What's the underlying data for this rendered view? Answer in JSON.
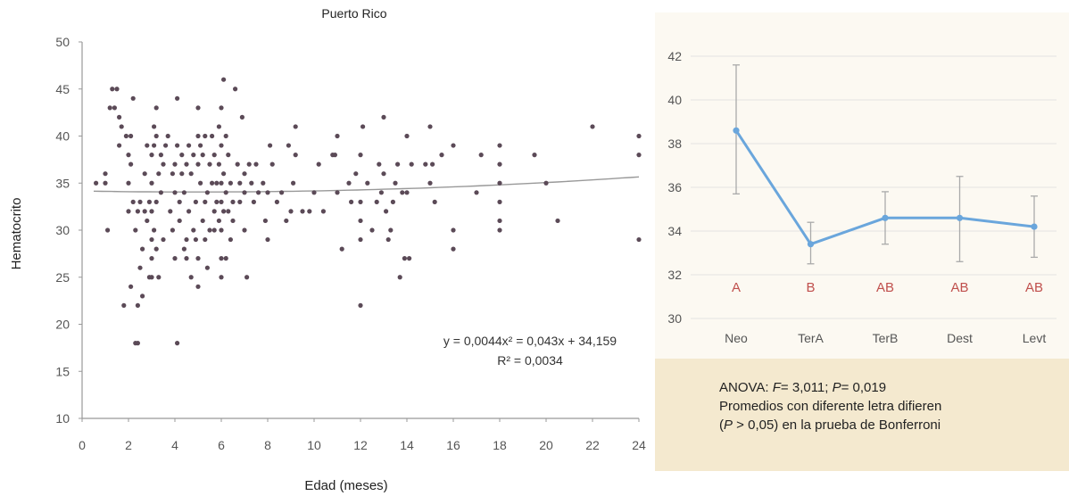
{
  "chart_data": [
    {
      "type": "scatter",
      "title": "Puerto Rico",
      "xlabel": "Edad (meses)",
      "ylabel": "Hematocrito",
      "xlim": [
        0,
        24
      ],
      "ylim": [
        10,
        50
      ],
      "xticks": [
        "0",
        "2",
        "4",
        "6",
        "8",
        "10",
        "12",
        "14",
        "16",
        "18",
        "20",
        "22",
        "24"
      ],
      "yticks": [
        "10",
        "15",
        "20",
        "25",
        "30",
        "35",
        "40",
        "45",
        "50"
      ],
      "colors": {
        "points": "#5b4a57",
        "trend": "#999999"
      },
      "trendline": {
        "a": 0.0044,
        "b": 0.043,
        "c": 34.159
      },
      "equation": "y = 0,0044x² = 0,043x + 34,159",
      "r2": "R² = 0,0034",
      "points": [
        [
          0.6,
          35
        ],
        [
          1,
          35
        ],
        [
          1,
          36
        ],
        [
          1.1,
          30
        ],
        [
          1.2,
          43
        ],
        [
          1.3,
          45
        ],
        [
          1.4,
          43
        ],
        [
          1.5,
          45
        ],
        [
          1.6,
          39
        ],
        [
          1.6,
          42
        ],
        [
          1.7,
          41
        ],
        [
          1.8,
          22
        ],
        [
          1.9,
          40
        ],
        [
          2,
          35
        ],
        [
          2,
          38
        ],
        [
          2,
          32
        ],
        [
          2.1,
          24
        ],
        [
          2.1,
          37
        ],
        [
          2.1,
          40
        ],
        [
          2.2,
          44
        ],
        [
          2.2,
          33
        ],
        [
          2.3,
          18
        ],
        [
          2.3,
          30
        ],
        [
          2.4,
          18
        ],
        [
          2.4,
          22
        ],
        [
          2.4,
          32
        ],
        [
          2.5,
          26
        ],
        [
          2.5,
          33
        ],
        [
          2.6,
          28
        ],
        [
          2.6,
          23
        ],
        [
          2.7,
          32
        ],
        [
          2.7,
          36
        ],
        [
          2.8,
          31
        ],
        [
          2.8,
          39
        ],
        [
          2.9,
          25
        ],
        [
          2.9,
          33
        ],
        [
          3,
          27
        ],
        [
          3,
          25
        ],
        [
          3,
          29
        ],
        [
          3,
          32
        ],
        [
          3,
          35
        ],
        [
          3,
          38
        ],
        [
          3.1,
          30
        ],
        [
          3.1,
          39
        ],
        [
          3.1,
          41
        ],
        [
          3.2,
          43
        ],
        [
          3.2,
          40
        ],
        [
          3.2,
          28
        ],
        [
          3.2,
          33
        ],
        [
          3.3,
          25
        ],
        [
          3.3,
          36
        ],
        [
          3.4,
          38
        ],
        [
          3.4,
          34
        ],
        [
          3.5,
          29
        ],
        [
          3.5,
          37
        ],
        [
          3.6,
          39
        ],
        [
          3.7,
          40
        ],
        [
          3.8,
          32
        ],
        [
          3.9,
          36
        ],
        [
          3.9,
          30
        ],
        [
          4,
          34
        ],
        [
          4,
          37
        ],
        [
          4,
          27
        ],
        [
          4.1,
          39
        ],
        [
          4.1,
          18
        ],
        [
          4.1,
          44
        ],
        [
          4.2,
          33
        ],
        [
          4.2,
          31
        ],
        [
          4.3,
          36
        ],
        [
          4.3,
          38
        ],
        [
          4.4,
          34
        ],
        [
          4.4,
          28
        ],
        [
          4.5,
          29
        ],
        [
          4.5,
          27
        ],
        [
          4.5,
          37
        ],
        [
          4.6,
          39
        ],
        [
          4.6,
          32
        ],
        [
          4.7,
          25
        ],
        [
          4.7,
          36
        ],
        [
          4.8,
          30
        ],
        [
          4.8,
          38
        ],
        [
          4.9,
          29
        ],
        [
          4.9,
          33
        ],
        [
          5,
          24
        ],
        [
          5,
          27
        ],
        [
          5,
          37
        ],
        [
          5,
          40
        ],
        [
          5,
          43
        ],
        [
          5.1,
          35
        ],
        [
          5.1,
          39
        ],
        [
          5.2,
          31
        ],
        [
          5.2,
          38
        ],
        [
          5.3,
          33
        ],
        [
          5.3,
          29
        ],
        [
          5.3,
          40
        ],
        [
          5.4,
          26
        ],
        [
          5.4,
          34
        ],
        [
          5.5,
          30
        ],
        [
          5.5,
          37
        ],
        [
          5.6,
          35
        ],
        [
          5.6,
          40
        ],
        [
          5.7,
          32
        ],
        [
          5.7,
          38
        ],
        [
          5.7,
          30
        ],
        [
          5.8,
          33
        ],
        [
          5.8,
          35
        ],
        [
          5.9,
          31
        ],
        [
          5.9,
          37
        ],
        [
          5.9,
          41
        ],
        [
          6,
          25
        ],
        [
          6,
          27
        ],
        [
          6,
          30
        ],
        [
          6,
          33
        ],
        [
          6,
          35
        ],
        [
          6,
          39
        ],
        [
          6,
          43
        ],
        [
          6.1,
          46
        ],
        [
          6.1,
          32
        ],
        [
          6.1,
          36
        ],
        [
          6.2,
          27
        ],
        [
          6.2,
          34
        ],
        [
          6.2,
          40
        ],
        [
          6.3,
          32
        ],
        [
          6.3,
          38
        ],
        [
          6.4,
          29
        ],
        [
          6.4,
          35
        ],
        [
          6.5,
          31
        ],
        [
          6.5,
          33
        ],
        [
          6.6,
          45
        ],
        [
          6.7,
          37
        ],
        [
          6.8,
          33
        ],
        [
          6.8,
          35
        ],
        [
          6.9,
          42
        ],
        [
          7,
          36
        ],
        [
          7,
          34
        ],
        [
          7,
          30
        ],
        [
          7.1,
          25
        ],
        [
          7.2,
          37
        ],
        [
          7.3,
          35
        ],
        [
          7.4,
          33
        ],
        [
          7.5,
          37
        ],
        [
          7.6,
          34
        ],
        [
          7.8,
          35
        ],
        [
          7.9,
          31
        ],
        [
          8,
          29
        ],
        [
          8,
          34
        ],
        [
          8.1,
          39
        ],
        [
          8.2,
          37
        ],
        [
          8.4,
          33
        ],
        [
          8.6,
          34
        ],
        [
          8.8,
          31
        ],
        [
          8.9,
          39
        ],
        [
          9,
          32
        ],
        [
          9.1,
          35
        ],
        [
          9.2,
          41
        ],
        [
          9.2,
          38
        ],
        [
          9.5,
          32
        ],
        [
          9.8,
          32
        ],
        [
          10,
          34
        ],
        [
          10.2,
          37
        ],
        [
          10.4,
          32
        ],
        [
          10.8,
          38
        ],
        [
          10.9,
          38
        ],
        [
          11,
          40
        ],
        [
          11,
          34
        ],
        [
          11.2,
          28
        ],
        [
          11.5,
          35
        ],
        [
          11.6,
          33
        ],
        [
          11.8,
          36
        ],
        [
          12,
          22
        ],
        [
          12,
          29
        ],
        [
          12,
          31
        ],
        [
          12,
          33
        ],
        [
          12,
          38
        ],
        [
          12.1,
          41
        ],
        [
          12.3,
          35
        ],
        [
          12.5,
          30
        ],
        [
          12.7,
          33
        ],
        [
          12.8,
          37
        ],
        [
          12.9,
          34
        ],
        [
          13,
          42
        ],
        [
          13,
          36
        ],
        [
          13.1,
          32
        ],
        [
          13.2,
          29
        ],
        [
          13.3,
          30
        ],
        [
          13.4,
          33
        ],
        [
          13.5,
          35
        ],
        [
          13.6,
          37
        ],
        [
          13.7,
          25
        ],
        [
          13.8,
          34
        ],
        [
          13.9,
          27
        ],
        [
          14,
          40
        ],
        [
          14,
          34
        ],
        [
          14.1,
          27
        ],
        [
          14.2,
          37
        ],
        [
          14.8,
          37
        ],
        [
          15,
          41
        ],
        [
          15,
          35
        ],
        [
          15.1,
          37
        ],
        [
          15.2,
          33
        ],
        [
          15.5,
          38
        ],
        [
          16,
          28
        ],
        [
          16,
          39
        ],
        [
          16,
          30
        ],
        [
          17,
          34
        ],
        [
          17.2,
          38
        ],
        [
          18,
          30
        ],
        [
          18,
          33
        ],
        [
          18,
          35
        ],
        [
          18,
          37
        ],
        [
          18,
          39
        ],
        [
          18,
          31
        ],
        [
          19.5,
          38
        ],
        [
          20,
          35
        ],
        [
          20.5,
          31
        ],
        [
          22,
          41
        ],
        [
          24,
          29
        ],
        [
          24,
          38
        ],
        [
          24,
          40
        ]
      ]
    },
    {
      "type": "line",
      "categories": [
        "Neo",
        "TerA",
        "TerB",
        "Dest",
        "Levt"
      ],
      "values": [
        38.6,
        33.4,
        34.6,
        34.6,
        34.2
      ],
      "error_low": [
        35.7,
        32.5,
        33.4,
        32.6,
        32.8
      ],
      "error_high": [
        41.6,
        34.4,
        35.8,
        36.5,
        35.6
      ],
      "groups": [
        "A",
        "B",
        "AB",
        "AB",
        "AB"
      ],
      "ylim": [
        30,
        42
      ],
      "yticks": [
        "30",
        "32",
        "34",
        "36",
        "38",
        "40",
        "42"
      ],
      "colors": {
        "line": "#6aa6dc",
        "error": "#aaaaaa",
        "groups": "#c0504d",
        "panel": "#f4e9cf"
      }
    }
  ],
  "note": {
    "anova_prefix": "ANOVA: ",
    "f_label": "F",
    "f_value": "= 3,011; ",
    "p_label": "P",
    "p_value": "= 0,019",
    "line2": "Promedios con diferente letra difieren",
    "line3_open": "(",
    "line3_p": "P",
    "line3_rest": " > 0,05) en la prueba de Bonferroni"
  }
}
